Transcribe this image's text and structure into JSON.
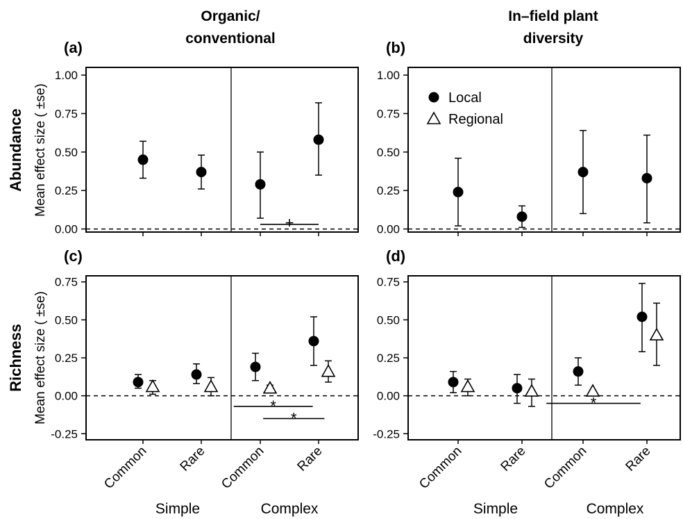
{
  "column_titles": {
    "left_line1": "Organic/",
    "left_line2": "conventional",
    "right_line1": "In–field plant",
    "right_line2": "diversity"
  },
  "row_titles": {
    "top": "Abundance",
    "bottom": "Richness"
  },
  "ylabel": "Mean effect size ( ±se)",
  "x_categories": [
    "Common",
    "Rare",
    "Common",
    "Rare"
  ],
  "x_groups": [
    "Simple",
    "Complex"
  ],
  "legend": [
    {
      "label": "Local",
      "marker": "filled-circle"
    },
    {
      "label": "Regional",
      "marker": "open-triangle"
    }
  ],
  "chart_data": [
    {
      "panel": "(a)",
      "type": "scatter",
      "ylim": [
        -0.02,
        1.05
      ],
      "yticks": [
        "0.00",
        "0.25",
        "0.50",
        "0.75",
        "1.00"
      ],
      "series": [
        {
          "name": "Local",
          "marker": "filled-circle",
          "points": [
            {
              "category": 1,
              "y": 0.45,
              "lo": 0.33,
              "hi": 0.57
            },
            {
              "category": 2,
              "y": 0.37,
              "lo": 0.26,
              "hi": 0.48
            },
            {
              "category": 3,
              "y": 0.29,
              "lo": 0.07,
              "hi": 0.5
            },
            {
              "category": 4,
              "y": 0.58,
              "lo": 0.35,
              "hi": 0.82
            }
          ]
        }
      ],
      "annotations": [
        {
          "mark": "+",
          "from": 3,
          "to": 4,
          "y": 0.03
        }
      ]
    },
    {
      "panel": "(b)",
      "type": "scatter",
      "ylim": [
        -0.02,
        1.05
      ],
      "yticks": [
        "0.00",
        "0.25",
        "0.50",
        "0.75",
        "1.00"
      ],
      "series": [
        {
          "name": "Local",
          "marker": "filled-circle",
          "points": [
            {
              "category": 1,
              "y": 0.24,
              "lo": 0.02,
              "hi": 0.46
            },
            {
              "category": 2,
              "y": 0.08,
              "lo": 0.01,
              "hi": 0.15
            },
            {
              "category": 3,
              "y": 0.37,
              "lo": 0.1,
              "hi": 0.64
            },
            {
              "category": 4,
              "y": 0.33,
              "lo": 0.04,
              "hi": 0.61
            }
          ]
        }
      ],
      "annotations": []
    },
    {
      "panel": "(c)",
      "type": "scatter",
      "ylim": [
        -0.29,
        0.79
      ],
      "yticks": [
        "-0.25",
        "0.00",
        "0.25",
        "0.50",
        "0.75"
      ],
      "series": [
        {
          "name": "Local",
          "marker": "filled-circle",
          "points": [
            {
              "category": 1,
              "y": 0.09,
              "lo": 0.05,
              "hi": 0.14
            },
            {
              "category": 2,
              "y": 0.14,
              "lo": 0.08,
              "hi": 0.21
            },
            {
              "category": 3,
              "y": 0.19,
              "lo": 0.1,
              "hi": 0.28
            },
            {
              "category": 4,
              "y": 0.36,
              "lo": 0.2,
              "hi": 0.52
            }
          ]
        },
        {
          "name": "Regional",
          "marker": "open-triangle",
          "points": [
            {
              "category": 1,
              "y": 0.06,
              "lo": 0.01,
              "hi": 0.1
            },
            {
              "category": 2,
              "y": 0.06,
              "lo": 0.0,
              "hi": 0.12
            },
            {
              "category": 3,
              "y": 0.05,
              "lo": 0.02,
              "hi": 0.07
            },
            {
              "category": 4,
              "y": 0.16,
              "lo": 0.09,
              "hi": 0.23
            }
          ]
        }
      ],
      "annotations": [
        {
          "mark": "*",
          "from": 2.55,
          "to": 3.9,
          "y": -0.07
        },
        {
          "mark": "*",
          "from": 3.05,
          "to": 4.1,
          "y": -0.15
        }
      ]
    },
    {
      "panel": "(d)",
      "type": "scatter",
      "ylim": [
        -0.29,
        0.79
      ],
      "yticks": [
        "-0.25",
        "0.00",
        "0.25",
        "0.50",
        "0.75"
      ],
      "series": [
        {
          "name": "Local",
          "marker": "filled-circle",
          "points": [
            {
              "category": 1,
              "y": 0.09,
              "lo": 0.02,
              "hi": 0.16
            },
            {
              "category": 2,
              "y": 0.05,
              "lo": -0.05,
              "hi": 0.14
            },
            {
              "category": 3,
              "y": 0.16,
              "lo": 0.07,
              "hi": 0.25
            },
            {
              "category": 4,
              "y": 0.52,
              "lo": 0.29,
              "hi": 0.74
            }
          ]
        },
        {
          "name": "Regional",
          "marker": "open-triangle",
          "points": [
            {
              "category": 1,
              "y": 0.06,
              "lo": 0.0,
              "hi": 0.11
            },
            {
              "category": 2,
              "y": 0.03,
              "lo": -0.07,
              "hi": 0.11
            },
            {
              "category": 3,
              "y": 0.03,
              "lo": 0.03,
              "hi": 0.03
            },
            {
              "category": 4,
              "y": 0.4,
              "lo": 0.2,
              "hi": 0.61
            }
          ]
        }
      ],
      "annotations": [
        {
          "mark": "*",
          "from": 2.4,
          "to": 3.9,
          "y": -0.05
        }
      ]
    }
  ]
}
